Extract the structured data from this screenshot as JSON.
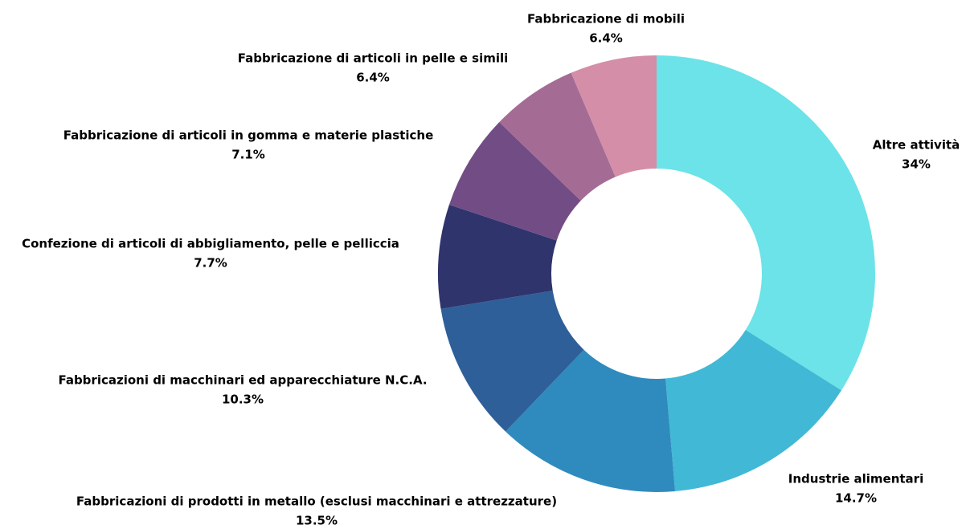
{
  "chart_data": {
    "type": "donut",
    "categories": [
      "Altre attività",
      "Industrie alimentari",
      "Fabbricazioni di prodotti in metallo (esclusi macchinari e attrezzature)",
      "Fabbricazioni di macchinari ed apparecchiature N.C.A.",
      "Confezione di articoli di abbigliamento, pelle e pelliccia",
      "Fabbricazione di articoli in gomma e materie plastiche",
      "Fabbricazione di articoli in pelle e simili",
      "Fabbricazione di mobili"
    ],
    "values": [
      34,
      14.7,
      13.5,
      10.3,
      7.7,
      7.1,
      6.4,
      6.4
    ],
    "value_labels": [
      "34%",
      "14.7%",
      "13.5%",
      "10.3%",
      "7.7%",
      "7.1%",
      "6.4%",
      "6.4%"
    ],
    "colors": [
      "#6be3e8",
      "#41b8d6",
      "#2f8bbd",
      "#2e5f99",
      "#2f346c",
      "#724c85",
      "#a46c95",
      "#d48ea7"
    ]
  }
}
